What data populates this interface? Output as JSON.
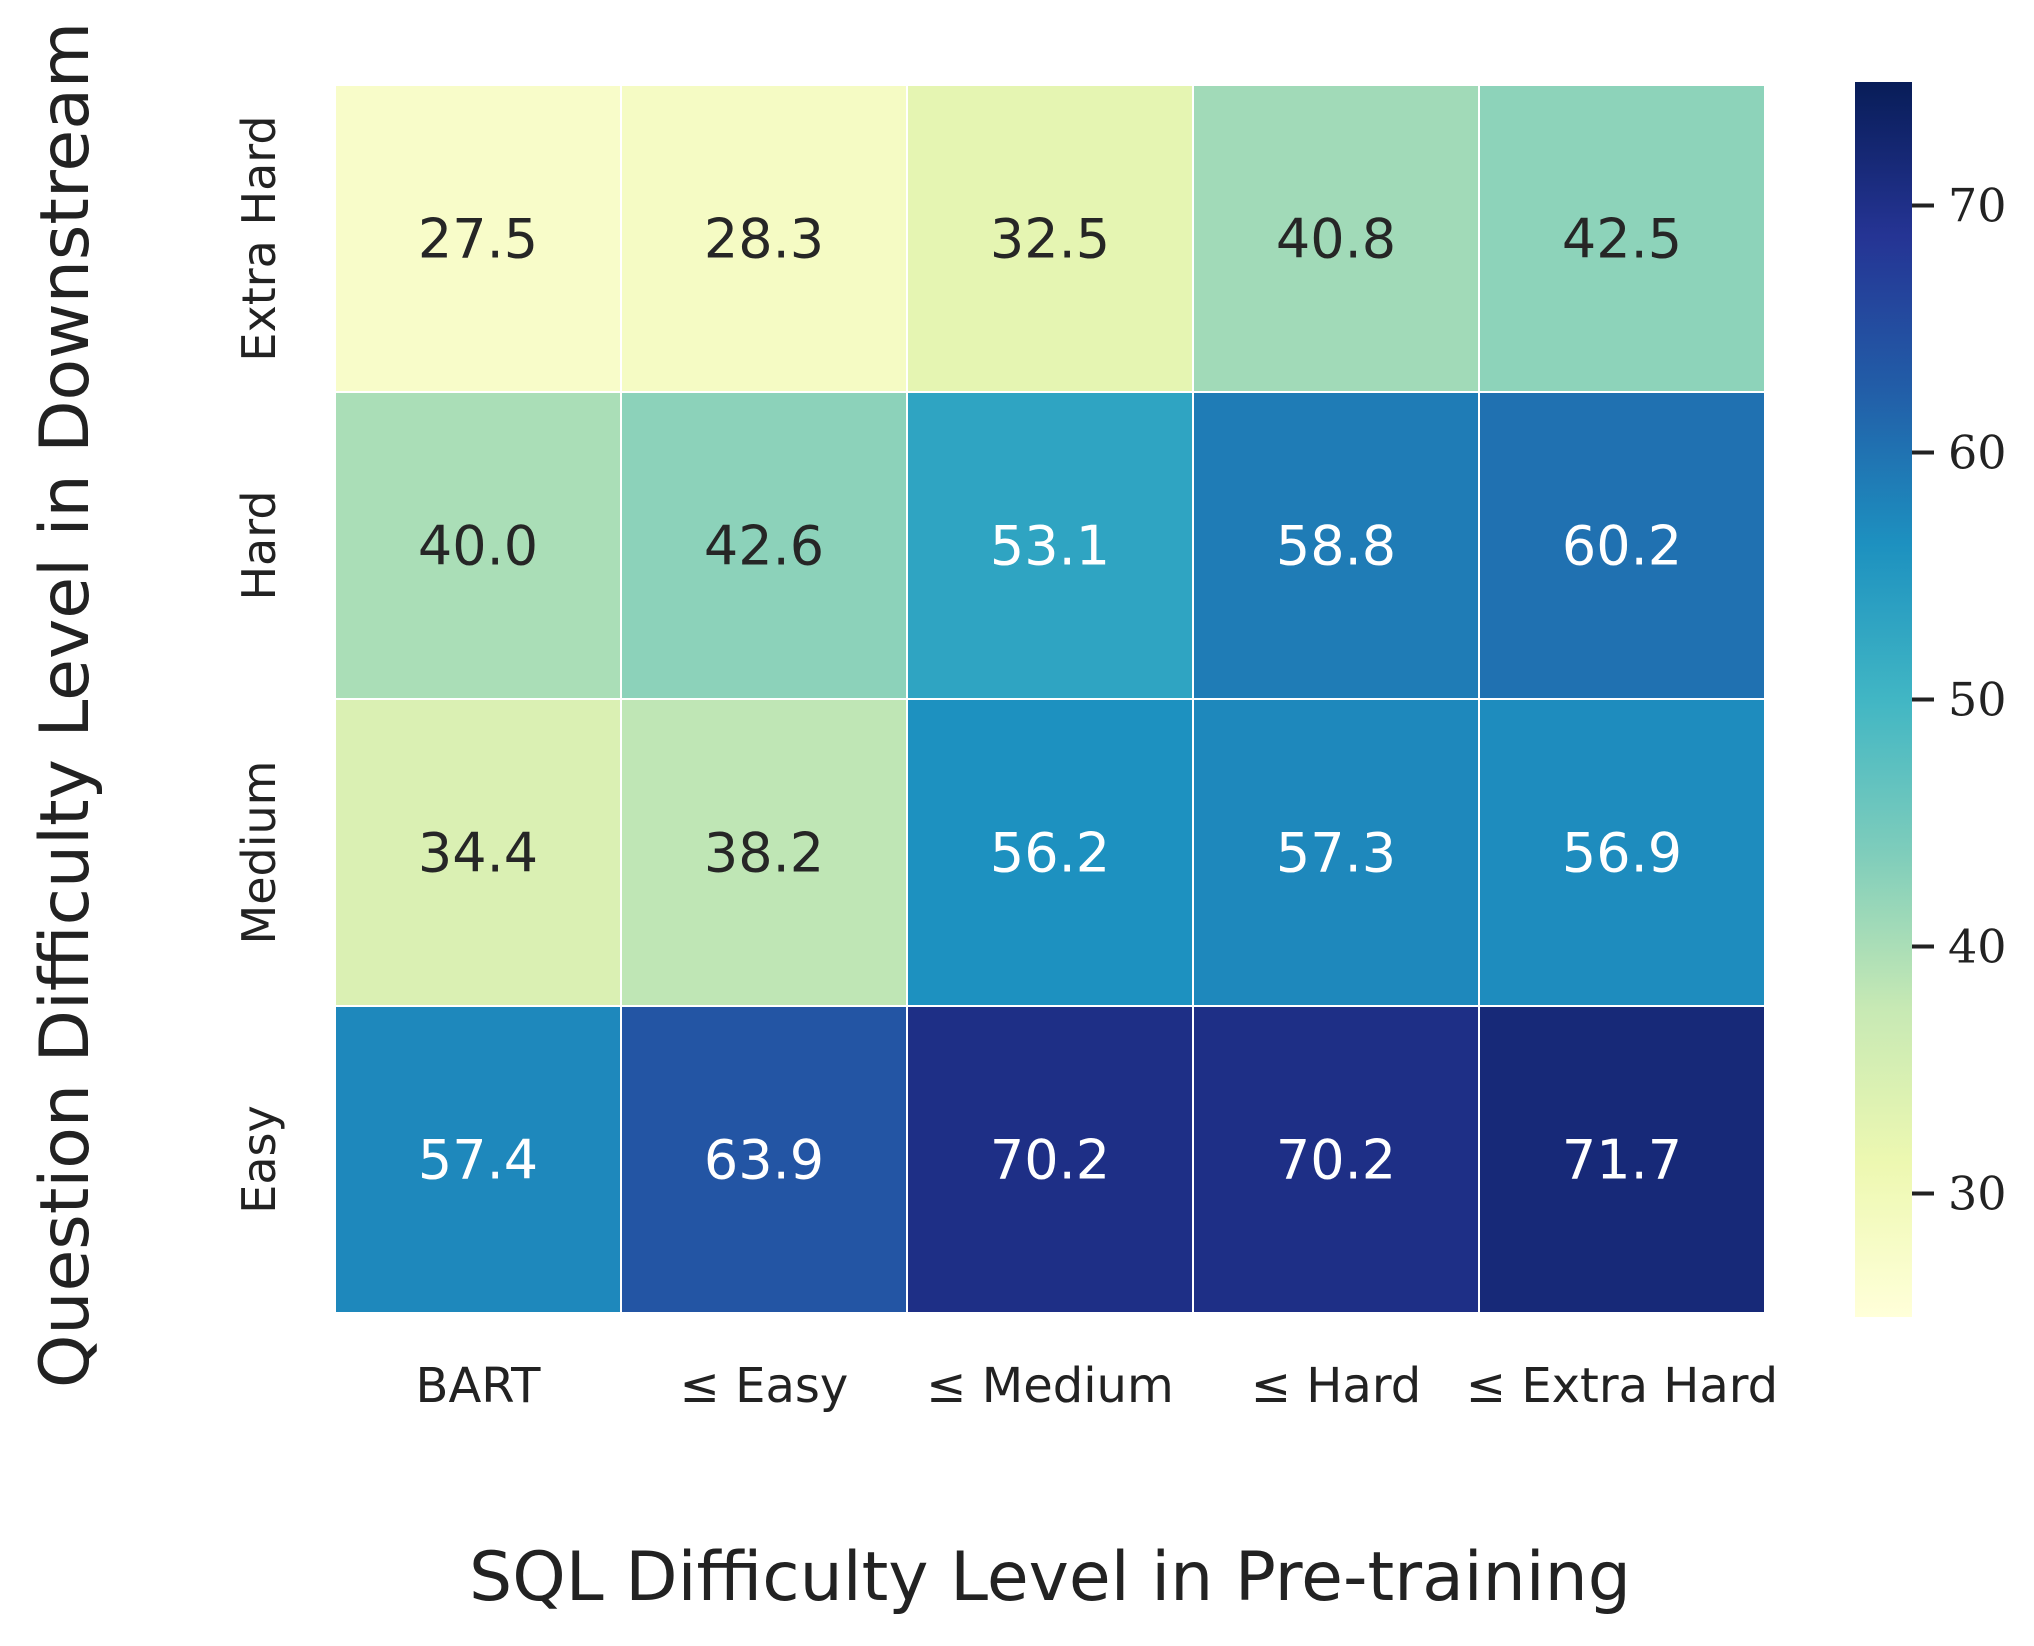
{
  "chart_data": {
    "type": "heatmap",
    "title": "",
    "xlabel": "SQL Difficulty Level in Pre-training",
    "ylabel": "Question Difficulty Level in Downstream",
    "x_categories": [
      "BART",
      "≤ Easy",
      "≤ Medium",
      "≤ Hard",
      "≤ Extra Hard"
    ],
    "y_categories": [
      "Extra Hard",
      "Hard",
      "Medium",
      "Easy"
    ],
    "values": [
      [
        27.5,
        28.3,
        32.5,
        40.8,
        42.5
      ],
      [
        40.0,
        42.6,
        53.1,
        58.8,
        60.2
      ],
      [
        34.4,
        38.2,
        56.2,
        57.3,
        56.9
      ],
      [
        57.4,
        63.9,
        70.2,
        70.2,
        71.7
      ]
    ],
    "value_labels": [
      [
        "27.5",
        "28.3",
        "32.5",
        "40.8",
        "42.5"
      ],
      [
        "40.0",
        "42.6",
        "53.1",
        "58.8",
        "60.2"
      ],
      [
        "34.4",
        "38.2",
        "56.2",
        "57.3",
        "56.9"
      ],
      [
        "57.4",
        "63.9",
        "70.2",
        "70.2",
        "71.7"
      ]
    ],
    "colormap": "YlGnBu",
    "colorbar": {
      "range": [
        25,
        75
      ],
      "ticks": [
        30,
        40,
        50,
        60,
        70
      ],
      "tick_labels": [
        "30",
        "40",
        "50",
        "60",
        "70"
      ]
    }
  }
}
